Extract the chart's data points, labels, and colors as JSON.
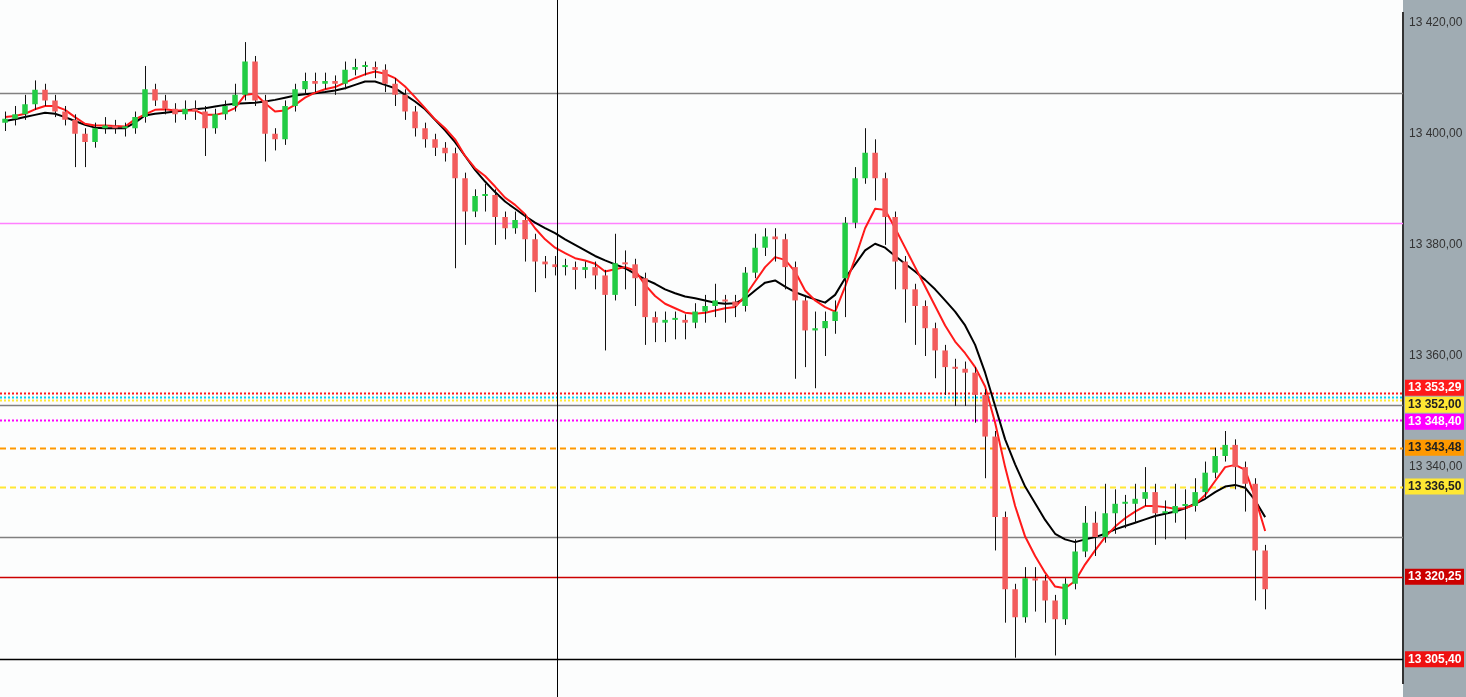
{
  "chart_data": {
    "type": "candlestick",
    "categories": [
      null,
      null,
      null,
      null,
      null,
      null,
      null,
      null,
      null,
      null,
      null,
      null,
      null,
      null,
      null,
      null,
      null,
      null,
      null,
      null,
      null,
      null,
      null,
      null,
      null,
      null,
      null,
      null,
      null,
      null,
      null,
      null,
      null,
      null,
      null,
      null,
      null,
      null,
      null,
      null,
      null,
      null,
      null,
      null,
      null,
      null,
      null,
      null,
      null,
      null,
      null,
      null,
      null,
      null,
      null,
      null,
      null,
      null,
      null,
      null,
      null,
      null,
      null,
      null,
      null,
      null,
      null,
      null,
      null,
      null,
      null,
      null,
      null,
      null,
      null,
      null,
      null,
      null,
      null,
      null,
      null,
      null,
      null,
      null,
      null,
      null,
      null,
      null,
      null,
      null,
      null,
      null,
      null,
      null,
      null,
      null,
      null,
      null,
      null,
      null,
      null,
      null,
      null,
      null,
      null,
      null,
      null,
      null,
      null,
      null,
      null,
      null,
      null,
      null,
      null,
      null,
      null,
      null,
      null,
      null,
      null,
      null,
      null,
      null,
      null,
      null,
      null
    ],
    "ohlc": [
      [
        13402.0,
        13404,
        13400.5,
        13402.7
      ],
      [
        13402.7,
        13405,
        13401.5,
        13403.5
      ],
      [
        13403.5,
        13407,
        13402.5,
        13405.3
      ],
      [
        13405.3,
        13409.6,
        13404.3,
        13407.9
      ],
      [
        13407.9,
        13409,
        13405,
        13406
      ],
      [
        13406,
        13407,
        13403,
        13404
      ],
      [
        13404,
        13405,
        13401.5,
        13402.5
      ],
      [
        13402.5,
        13403.5,
        13394,
        13400
      ],
      [
        13400,
        13401,
        13394,
        13398.5
      ],
      [
        13398.5,
        13402,
        13397.5,
        13401
      ],
      [
        13401,
        13403,
        13400,
        13401.5
      ],
      [
        13401.5,
        13402.5,
        13400,
        13401
      ],
      [
        13401,
        13402,
        13399.5,
        13401
      ],
      [
        13401,
        13404,
        13400,
        13403
      ],
      [
        13403,
        13412.2,
        13402,
        13408
      ],
      [
        13408,
        13409,
        13405,
        13406
      ],
      [
        13406,
        13407,
        13403.5,
        13404.5
      ],
      [
        13404.5,
        13405.5,
        13402,
        13403.5
      ],
      [
        13403.5,
        13406,
        13402.5,
        13404.5
      ],
      [
        13404.5,
        13406,
        13402.5,
        13404
      ],
      [
        13404,
        13405,
        13396,
        13401
      ],
      [
        13401,
        13404.5,
        13400,
        13403.5
      ],
      [
        13403.5,
        13406,
        13402.5,
        13405
      ],
      [
        13405,
        13409,
        13404,
        13407
      ],
      [
        13407,
        13416.5,
        13406,
        13413
      ],
      [
        13413,
        13414,
        13405,
        13406
      ],
      [
        13406,
        13407,
        13395,
        13400
      ],
      [
        13400,
        13401,
        13397,
        13399
      ],
      [
        13399,
        13406,
        13398,
        13405
      ],
      [
        13405,
        13409,
        13404,
        13408
      ],
      [
        13408,
        13411,
        13407,
        13409.5
      ],
      [
        13409.5,
        13411,
        13407.5,
        13409
      ],
      [
        13409,
        13411,
        13408,
        13409.5
      ],
      [
        13409.5,
        13410.5,
        13407,
        13409
      ],
      [
        13409,
        13413,
        13408,
        13411.5
      ],
      [
        13411.5,
        13413.5,
        13410.5,
        13412
      ],
      [
        13412,
        13413,
        13410.5,
        13412
      ],
      [
        13412,
        13413,
        13410,
        13411.5
      ],
      [
        13411.5,
        13412.5,
        13407.5,
        13409
      ],
      [
        13409,
        13410,
        13405,
        13407
      ],
      [
        13407,
        13408,
        13402.5,
        13404
      ],
      [
        13404,
        13405,
        13399.5,
        13401
      ],
      [
        13401,
        13402,
        13397.5,
        13399
      ],
      [
        13399,
        13400,
        13396,
        13397.5
      ],
      [
        13397.5,
        13398.5,
        13395,
        13396.5
      ],
      [
        13396.5,
        13397.5,
        13375.8,
        13392
      ],
      [
        13392,
        13393,
        13380,
        13386
      ],
      [
        13386,
        13390,
        13385,
        13388.8
      ],
      [
        13388.8,
        13391,
        13386,
        13389
      ],
      [
        13389,
        13390,
        13380,
        13385
      ],
      [
        13385,
        13386,
        13381,
        13383
      ],
      [
        13383,
        13386,
        13382,
        13384.5
      ],
      [
        13384.5,
        13385.5,
        13377,
        13381
      ],
      [
        13381,
        13382,
        13371.5,
        13377
      ],
      [
        13377,
        13378,
        13374,
        13376.5
      ],
      [
        13376.5,
        13378,
        13374.5,
        13376
      ],
      [
        13376,
        13377.5,
        13374.5,
        13376
      ],
      [
        13376,
        13377,
        13372,
        13375.5
      ],
      [
        13375.5,
        13377,
        13374,
        13376
      ],
      [
        13376,
        13377,
        13372,
        13374.5
      ],
      [
        13374.5,
        13375.5,
        13361,
        13371
      ],
      [
        13371,
        13382,
        13370,
        13376.7
      ],
      [
        13376.7,
        13379,
        13372,
        13376.5
      ],
      [
        13376.5,
        13377.5,
        13369,
        13374
      ],
      [
        13374,
        13375,
        13362,
        13367
      ],
      [
        13367,
        13368,
        13362.5,
        13366
      ],
      [
        13366,
        13368,
        13362.5,
        13366.5
      ],
      [
        13366.5,
        13368,
        13363,
        13366.5
      ],
      [
        13366.5,
        13367.5,
        13363,
        13366
      ],
      [
        13366,
        13369.5,
        13365,
        13368
      ],
      [
        13368,
        13371,
        13366,
        13369
      ],
      [
        13369,
        13373,
        13367,
        13370
      ],
      [
        13370,
        13371,
        13366,
        13369.8
      ],
      [
        13369.8,
        13371,
        13367,
        13369
      ],
      [
        13369,
        13376,
        13368,
        13375
      ],
      [
        13375,
        13382,
        13374,
        13379.5
      ],
      [
        13379.5,
        13383,
        13378,
        13381.5
      ],
      [
        13381.5,
        13383,
        13377,
        13381
      ],
      [
        13381,
        13382,
        13372,
        13376
      ],
      [
        13376,
        13377,
        13355.9,
        13370
      ],
      [
        13370,
        13371,
        13358,
        13364.6
      ],
      [
        13364.6,
        13368,
        13354.2,
        13365
      ],
      [
        13365,
        13368,
        13360,
        13366.3
      ],
      [
        13366.3,
        13370,
        13364,
        13368
      ],
      [
        13374,
        13385,
        13367,
        13384
      ],
      [
        13384,
        13394,
        13383,
        13392
      ],
      [
        13392,
        13401,
        13391,
        13396.6
      ],
      [
        13396.6,
        13399,
        13388,
        13392
      ],
      [
        13392,
        13393,
        13380,
        13385
      ],
      [
        13385,
        13386,
        13372,
        13377
      ],
      [
        13377,
        13378,
        13366,
        13372
      ],
      [
        13372,
        13373,
        13362,
        13369
      ],
      [
        13369,
        13370,
        13360,
        13365
      ],
      [
        13365,
        13366,
        13356,
        13361
      ],
      [
        13361,
        13362,
        13353,
        13358
      ],
      [
        13358,
        13359.5,
        13351,
        13357.7
      ],
      [
        13357.7,
        13359,
        13351,
        13357
      ],
      [
        13357,
        13358,
        13348,
        13353
      ],
      [
        13353,
        13354,
        13338,
        13345.5
      ],
      [
        13345.5,
        13346.5,
        13325,
        13331
      ],
      [
        13331,
        13332,
        13312,
        13318
      ],
      [
        13318,
        13319,
        13305.7,
        13313
      ],
      [
        13313,
        13322,
        13312,
        13320
      ],
      [
        13320,
        13322,
        13314,
        13319.6
      ],
      [
        13319.6,
        13320.6,
        13312,
        13316
      ],
      [
        13316,
        13317,
        13306.1,
        13312.6
      ],
      [
        13312.6,
        13320,
        13311.6,
        13319
      ],
      [
        13319,
        13327,
        13318,
        13324.8
      ],
      [
        13324.8,
        13333,
        13323.8,
        13330
      ],
      [
        13330,
        13332,
        13324,
        13327.4
      ],
      [
        13327.4,
        13337,
        13326.4,
        13331.7
      ],
      [
        13331.7,
        13336,
        13328,
        13333.4
      ],
      [
        13333.4,
        13335,
        13329,
        13333.4
      ],
      [
        13333.4,
        13337,
        13330,
        13334.3
      ],
      [
        13334.3,
        13340,
        13333,
        13335.5
      ],
      [
        13335.5,
        13337,
        13326,
        13331.7
      ],
      [
        13331.7,
        13334,
        13327,
        13331.7
      ],
      [
        13331.7,
        13337,
        13330,
        13333
      ],
      [
        13333,
        13336,
        13327,
        13333
      ],
      [
        13333,
        13338,
        13332,
        13335.5
      ],
      [
        13335.5,
        13341,
        13334.5,
        13339
      ],
      [
        13339,
        13343.5,
        13338,
        13342
      ],
      [
        13342,
        13346.5,
        13341,
        13344
      ],
      [
        13344,
        13345,
        13336,
        13340
      ],
      [
        13340,
        13341,
        13332,
        13337
      ],
      [
        13337,
        13338,
        13316,
        13325
      ],
      [
        13325,
        13326,
        13314.4,
        13318
      ]
    ],
    "series": [
      {
        "type": "line",
        "color": "#ff1a1a",
        "values": [
          13403,
          13403.2,
          13403.6,
          13404.4,
          13405,
          13405,
          13404.3,
          13403,
          13401.8,
          13401.5,
          13401.5,
          13401.4,
          13401.3,
          13402.6,
          13403.5,
          13404.3,
          13404.4,
          13404.2,
          13404.2,
          13404.2,
          13403.4,
          13403.4,
          13403.8,
          13404.6,
          13407,
          13407.2,
          13405.5,
          13404,
          13404.2,
          13405.2,
          13406.5,
          13407.4,
          13408,
          13408.4,
          13409.2,
          13410,
          13410.7,
          13411.2,
          13410.8,
          13410,
          13408.5,
          13406.6,
          13404.6,
          13402.6,
          13401,
          13399,
          13396,
          13393.8,
          13392.4,
          13390.5,
          13388.5,
          13387.2,
          13385.5,
          13383,
          13381,
          13379.5,
          13378.5,
          13377.6,
          13377.2,
          13376.6,
          13375.2,
          13375.6,
          13376,
          13375.4,
          13372.8,
          13370.8,
          13369.4,
          13368.6,
          13367.8,
          13367.6,
          13367.8,
          13368.2,
          13368.6,
          13368.8,
          13370.8,
          13373.4,
          13376,
          13377.8,
          13377.3,
          13375.2,
          13371.8,
          13370,
          13368.8,
          13368,
          13372.5,
          13377.6,
          13383,
          13386.5,
          13386.3,
          13383,
          13379.5,
          13376,
          13372.5,
          13369,
          13365.5,
          13362.6,
          13360.5,
          13358,
          13354.5,
          13348,
          13340,
          13333,
          13327.5,
          13324,
          13321,
          13318.5,
          13318.2,
          13319.5,
          13322.5,
          13325,
          13327.4,
          13329.3,
          13330.8,
          13332,
          13333,
          13333,
          13332.8,
          13332.5,
          13332.6,
          13333.3,
          13335,
          13337.5,
          13340,
          13340.4,
          13339.5,
          13334.5,
          13328.5
        ]
      },
      {
        "type": "line",
        "color": "#000000",
        "values": [
          13402.3,
          13402.6,
          13403,
          13403.4,
          13403.8,
          13403.6,
          13403,
          13402.3,
          13401.6,
          13401.1,
          13401,
          13401,
          13401,
          13402,
          13403.3,
          13403.6,
          13403.8,
          13404,
          13404.2,
          13404.4,
          13404.6,
          13404.9,
          13405.2,
          13405.4,
          13405.5,
          13405.6,
          13405.8,
          13406.1,
          13406.5,
          13406.9,
          13407.1,
          13407.3,
          13407.5,
          13407.8,
          13408.2,
          13408.8,
          13409.4,
          13409.4,
          13408.8,
          13408.2,
          13407,
          13405.8,
          13404.4,
          13402.5,
          13400.6,
          13398.5,
          13396,
          13393.5,
          13391.4,
          13389.5,
          13387.8,
          13386.5,
          13385.2,
          13384,
          13383,
          13382.1,
          13381,
          13380,
          13379,
          13378,
          13377.2,
          13376.5,
          13375.8,
          13374.8,
          13373.8,
          13373,
          13372,
          13371.3,
          13370.7,
          13370.4,
          13370,
          13369.6,
          13369.4,
          13369.5,
          13370.3,
          13371.8,
          13373.2,
          13373.6,
          13372.5,
          13371.5,
          13370.8,
          13370.2,
          13369.6,
          13371,
          13374,
          13376.5,
          13379,
          13380.2,
          13379.5,
          13378,
          13376.6,
          13375.2,
          13373.7,
          13372,
          13370,
          13368,
          13365.5,
          13362,
          13357,
          13351,
          13345,
          13340.5,
          13336.5,
          13333.5,
          13330.5,
          13328,
          13327,
          13326.5,
          13327,
          13327.4,
          13328,
          13328.8,
          13329.4,
          13330,
          13330.6,
          13331.2,
          13331.6,
          13332,
          13332.6,
          13333.4,
          13334.3,
          13335.5,
          13336.5,
          13336.8,
          13336.3,
          13334,
          13331
        ]
      }
    ],
    "ylim": [
      13301,
      13421.7
    ],
    "yticks": [
      {
        "value": 13340,
        "label": "13 340,00"
      },
      {
        "value": 13360,
        "label": "13 360,00"
      },
      {
        "value": 13380,
        "label": "13 380,00"
      },
      {
        "value": 13400,
        "label": "13 400,00"
      },
      {
        "value": 13420,
        "label": "13 420,00"
      }
    ],
    "ref_lines": [
      {
        "axis": "y",
        "value": 13407.4,
        "color": "#808080",
        "line_style": "solid"
      },
      {
        "axis": "y",
        "value": 13384.0,
        "color": "#ff80ff",
        "line_style": "solid"
      },
      {
        "axis": "y",
        "value": 13352.7,
        "color": "#00d0f0",
        "line_style": "dotted"
      },
      {
        "axis": "y",
        "value": 13352.0,
        "label": "13 352,00",
        "color": "#ffe833",
        "line_style": "dotted"
      },
      {
        "axis": "y",
        "value": 13353.29,
        "label": "13 353,29",
        "color": "#ff1a1a",
        "line_style": "dotted"
      },
      {
        "axis": "y",
        "value": 13351.1,
        "color": "#808080",
        "line_style": "solid"
      },
      {
        "axis": "y",
        "value": 13348.4,
        "label": "13 348,40",
        "color": "#ff00ff",
        "line_style": "dotted"
      },
      {
        "axis": "y",
        "value": 13343.48,
        "label": "13 343,48",
        "color": "#ff9900",
        "line_style": "dashed"
      },
      {
        "axis": "y",
        "value": 13336.5,
        "label": "13 336,50",
        "color": "#ffe833",
        "line_style": "dashed"
      },
      {
        "axis": "y",
        "value": 13327.4,
        "color": "#808080",
        "line_style": "solid"
      },
      {
        "axis": "y",
        "value": 13320.25,
        "label": "13 320,25",
        "color": "#cc0000",
        "line_style": "solid"
      },
      {
        "axis": "y",
        "value": 13305.4,
        "label": "13 305,40",
        "color": "#000000",
        "line_style": "solid"
      }
    ]
  }
}
